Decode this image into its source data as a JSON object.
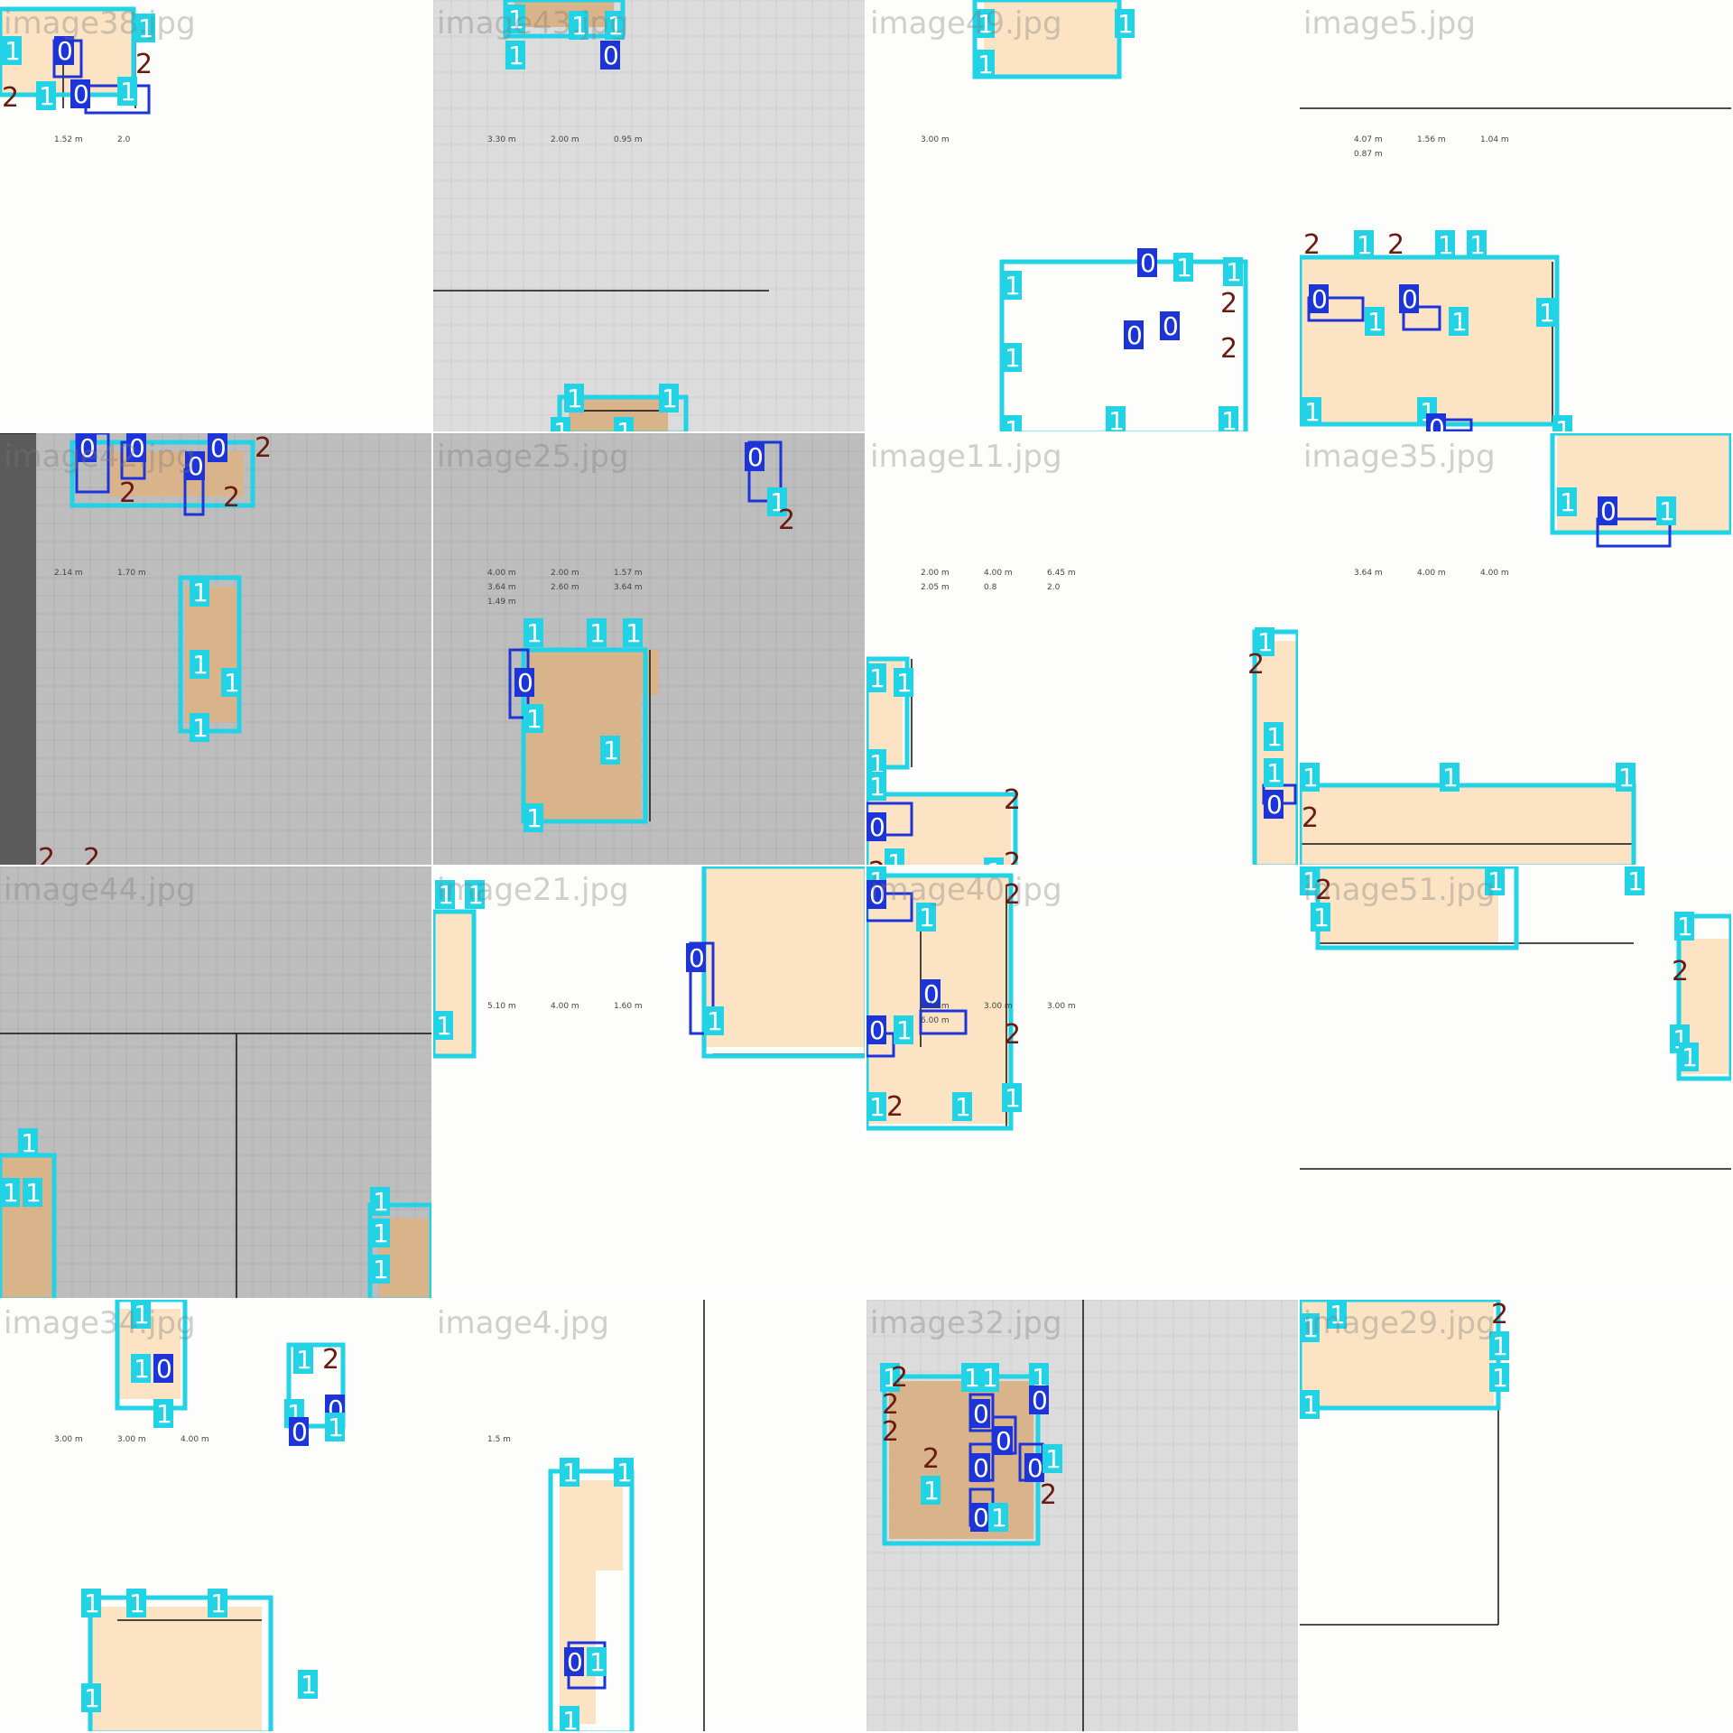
{
  "palette": {
    "room": "#fbe3c4",
    "room_dark": "#d9b48a",
    "box_wall": "#22d3e6",
    "box_door": "#1c34d8",
    "label_bg_wall": "#22d3e6",
    "label_bg_door": "#1c34d8",
    "label_window": "#6a1a10",
    "wall_line": "#111111",
    "grid_bg": "#dcdcdc",
    "dark_grid_bg": "#bdbdbd"
  },
  "tiles": [
    {
      "name": "image38.jpg",
      "theme": "white",
      "dims": [
        "1.52 m",
        "2.0"
      ]
    },
    {
      "name": "image43.jpg",
      "theme": "grid",
      "dims": [
        "3.30 m",
        "2.00 m",
        "0.95 m"
      ]
    },
    {
      "name": "image49.jpg",
      "theme": "white",
      "dims": [
        "3.00 m"
      ]
    },
    {
      "name": "image5.jpg",
      "theme": "white",
      "dims": [
        "4.07 m",
        "1.56 m",
        "1.04 m",
        "0.87 m"
      ]
    },
    {
      "name": "image42.jpg",
      "theme": "darkgrid",
      "dims": [
        "2.14 m",
        "1.70 m"
      ]
    },
    {
      "name": "image25.jpg",
      "theme": "darkgrid",
      "dims": [
        "4.00 m",
        "2.00 m",
        "1.57 m",
        "3.64 m",
        "2.60 m",
        "3.64 m",
        "1.49 m"
      ]
    },
    {
      "name": "image11.jpg",
      "theme": "white",
      "dims": [
        "2.00 m",
        "4.00 m",
        "6.45 m",
        "2.05 m",
        "0.8",
        "2.0"
      ]
    },
    {
      "name": "image35.jpg",
      "theme": "white",
      "dims": [
        "3.64 m",
        "4.00 m",
        "4.00 m"
      ]
    },
    {
      "name": "image44.jpg",
      "theme": "darkgrid",
      "dims": []
    },
    {
      "name": "image21.jpg",
      "theme": "white",
      "dims": [
        "5.10 m",
        "4.00 m",
        "1.60 m"
      ]
    },
    {
      "name": "image40.jpg",
      "theme": "white",
      "dims": [
        "2.14 m",
        "3.00 m",
        "3.00 m",
        "6.00 m"
      ]
    },
    {
      "name": "image51.jpg",
      "theme": "white",
      "dims": []
    },
    {
      "name": "image34.jpg",
      "theme": "white",
      "dims": [
        "3.00 m",
        "3.00 m",
        "4.00 m"
      ]
    },
    {
      "name": "image4.jpg",
      "theme": "white",
      "dims": [
        "1.5 m"
      ]
    },
    {
      "name": "image32.jpg",
      "theme": "grid",
      "dims": []
    },
    {
      "name": "image29.jpg",
      "theme": "white",
      "dims": []
    }
  ],
  "label_classes": {
    "door": "0",
    "wall": "1",
    "window": "2"
  }
}
